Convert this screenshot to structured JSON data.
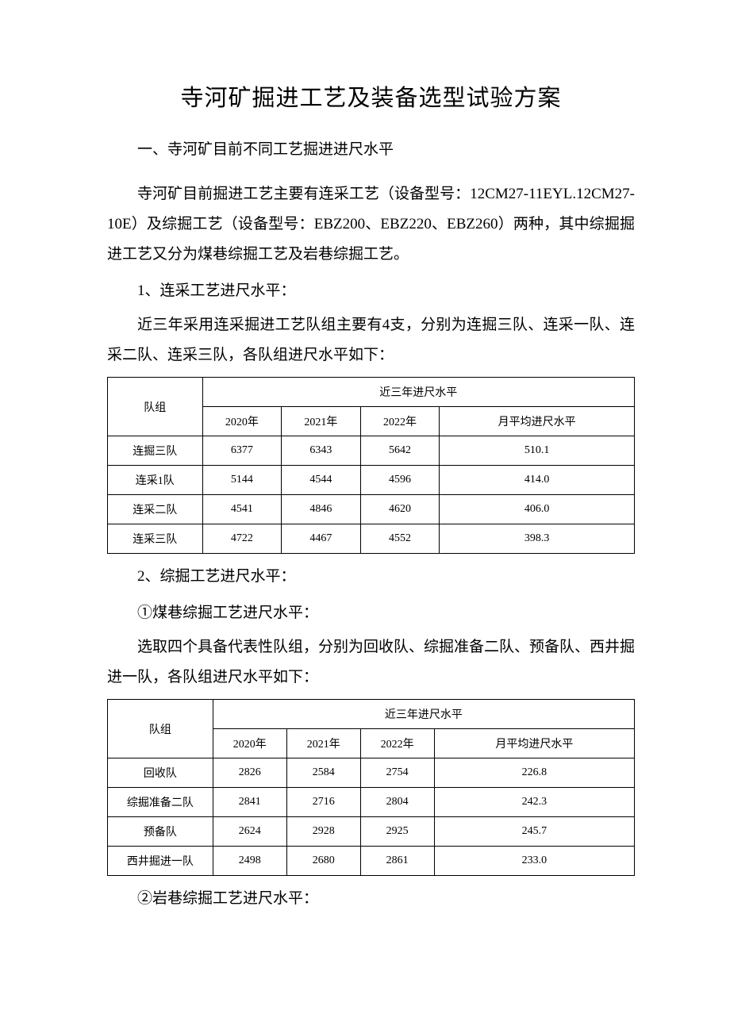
{
  "title": "寺河矿掘进工艺及装备选型试验方案",
  "section1": {
    "heading": "一、寺河矿目前不同工艺掘进进尺水平",
    "para1": "寺河矿目前掘进工艺主要有连采工艺（设备型号：12CM27-11EYL.12CM27-10E）及综掘工艺（设备型号：EBZ200、EBZ220、EBZ260）两种，其中综掘掘进工艺又分为煤巷综掘工艺及岩巷综掘工艺。",
    "sub1": {
      "heading": "1、连采工艺进尺水平：",
      "para": "近三年采用连采掘进工艺队组主要有4支，分别为连掘三队、连采一队、连采二队、连采三队，各队组进尺水平如下："
    },
    "sub2": {
      "heading": "2、综掘工艺进尺水平：",
      "item1_heading": "①煤巷综掘工艺进尺水平：",
      "item1_para": "选取四个具备代表性队组，分别为回收队、综掘准备二队、预备队、西井掘进一队，各队组进尺水平如下：",
      "item2_heading": "②岩巷综掘工艺进尺水平："
    }
  },
  "table1": {
    "header_team": "队组",
    "header_group": "近三年进尺水平",
    "header_y2020": "2020年",
    "header_y2021": "2021年",
    "header_y2022": "2022年",
    "header_avg": "月平均进尺水平",
    "rows": [
      {
        "team": "连掘三队",
        "y2020": "6377",
        "y2021": "6343",
        "y2022": "5642",
        "avg": "510.1"
      },
      {
        "team": "连采1队",
        "y2020": "5144",
        "y2021": "4544",
        "y2022": "4596",
        "avg": "414.0"
      },
      {
        "team": "连采二队",
        "y2020": "4541",
        "y2021": "4846",
        "y2022": "4620",
        "avg": "406.0"
      },
      {
        "team": "连采三队",
        "y2020": "4722",
        "y2021": "4467",
        "y2022": "4552",
        "avg": "398.3"
      }
    ]
  },
  "table2": {
    "header_team": "队组",
    "header_group": "近三年进尺水平",
    "header_y2020": "2020年",
    "header_y2021": "2021年",
    "header_y2022": "2022年",
    "header_avg": "月平均进尺水平",
    "rows": [
      {
        "team": "回收队",
        "y2020": "2826",
        "y2021": "2584",
        "y2022": "2754",
        "avg": "226.8"
      },
      {
        "team": "综掘准备二队",
        "y2020": "2841",
        "y2021": "2716",
        "y2022": "2804",
        "avg": "242.3"
      },
      {
        "team": "预备队",
        "y2020": "2624",
        "y2021": "2928",
        "y2022": "2925",
        "avg": "245.7"
      },
      {
        "team": "西井掘进一队",
        "y2020": "2498",
        "y2021": "2680",
        "y2022": "2861",
        "avg": "233.0"
      }
    ]
  }
}
